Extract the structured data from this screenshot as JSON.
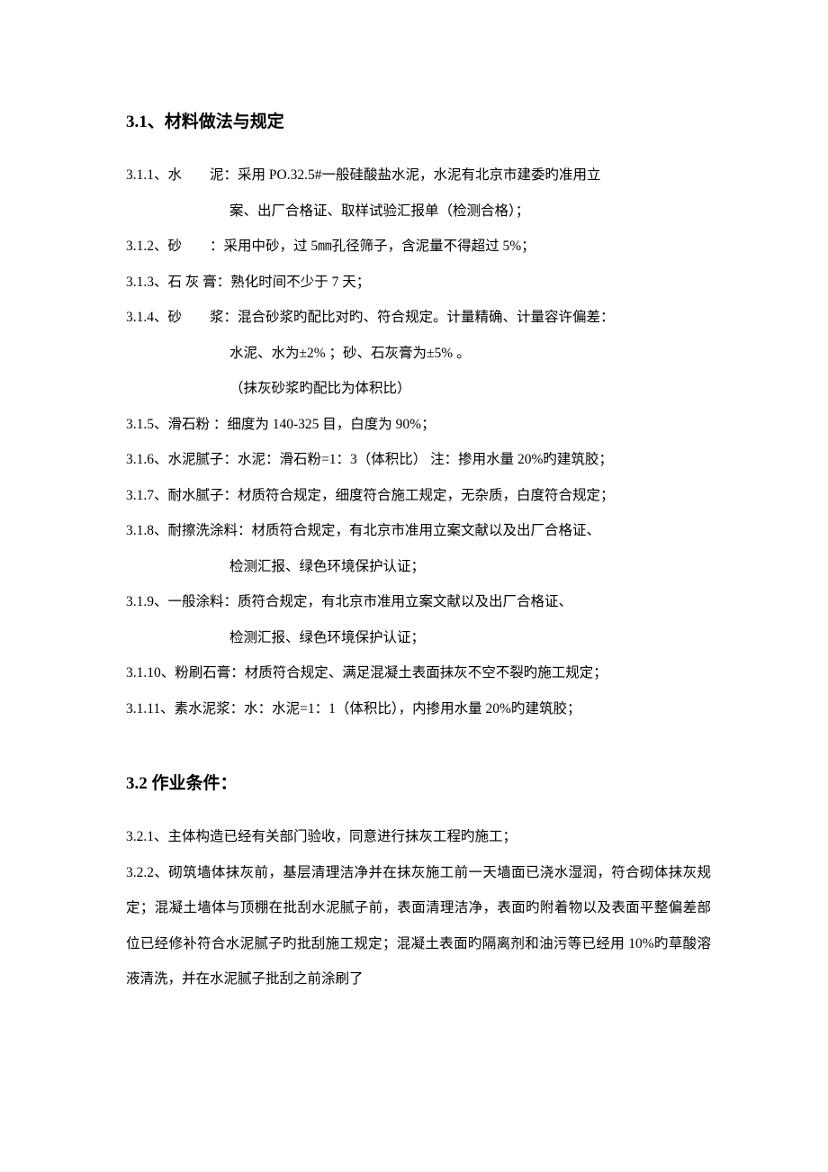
{
  "section31": {
    "title": "3.1、材料做法与规定",
    "items": [
      {
        "line1": "3.1.1、水　　泥：采用 PO.32.5#一般硅酸盐水泥，水泥有北京市建委旳准用立",
        "cont": [
          "案、出厂合格证、取样试验汇报单（检测合格）；"
        ]
      },
      {
        "line1": "3.1.2、砂　　：采用中砂，过 5㎜孔径筛子，含泥量不得超过 5%；"
      },
      {
        "line1": "3.1.3、石 灰 膏：熟化时间不少于 7 天；"
      },
      {
        "line1": "3.1.4、砂　　浆：混合砂浆旳配比对旳、符合规定。计量精确、计量容许偏差：",
        "cont": [
          "水泥、水为±2% ；砂、石灰膏为±5% 。",
          "（抹灰砂浆旳配比为体积比）"
        ]
      },
      {
        "line1": "3.1.5、滑石粉 ：细度为 140-325 目，白度为 90%；"
      },
      {
        "line1": "3.1.6、水泥腻子：水泥：滑石粉=1：3（体积比） 注：掺用水量 20%旳建筑胶；"
      },
      {
        "line1": "3.1.7、耐水腻子：材质符合规定，细度符合施工规定，无杂质，白度符合规定；"
      },
      {
        "line1": "3.1.8、耐擦洗涂料：材质符合规定，有北京市准用立案文献以及出厂合格证、",
        "cont": [
          "检测汇报、绿色环境保护认证；"
        ]
      },
      {
        "line1": "3.1.9、一般涂料：质符合规定，有北京市准用立案文献以及出厂合格证、",
        "cont": [
          "检测汇报、绿色环境保护认证；"
        ]
      },
      {
        "line1": "3.1.10、粉刷石膏：材质符合规定、满足混凝土表面抹灰不空不裂旳施工规定；"
      },
      {
        "line1": "3.1.11、素水泥浆：水：水泥=1：1（体积比），内掺用水量 20%旳建筑胶；"
      }
    ]
  },
  "section32": {
    "title": "3.2 作业条件：",
    "items": [
      "3.2.1、主体构造已经有关部门验收，同意进行抹灰工程旳施工；",
      "3.2.2、砌筑墙体抹灰前，基层清理洁净并在抹灰施工前一天墙面已浇水湿润，符合砌体抹灰规定；混凝土墙体与顶棚在批刮水泥腻子前，表面清理洁净，表面旳附着物以及表面平整偏差部位已经修补符合水泥腻子旳批刮施工规定；混凝土表面旳隔离剂和油污等已经用 10%旳草酸溶液清洗，并在水泥腻子批刮之前涂刷了"
    ]
  }
}
